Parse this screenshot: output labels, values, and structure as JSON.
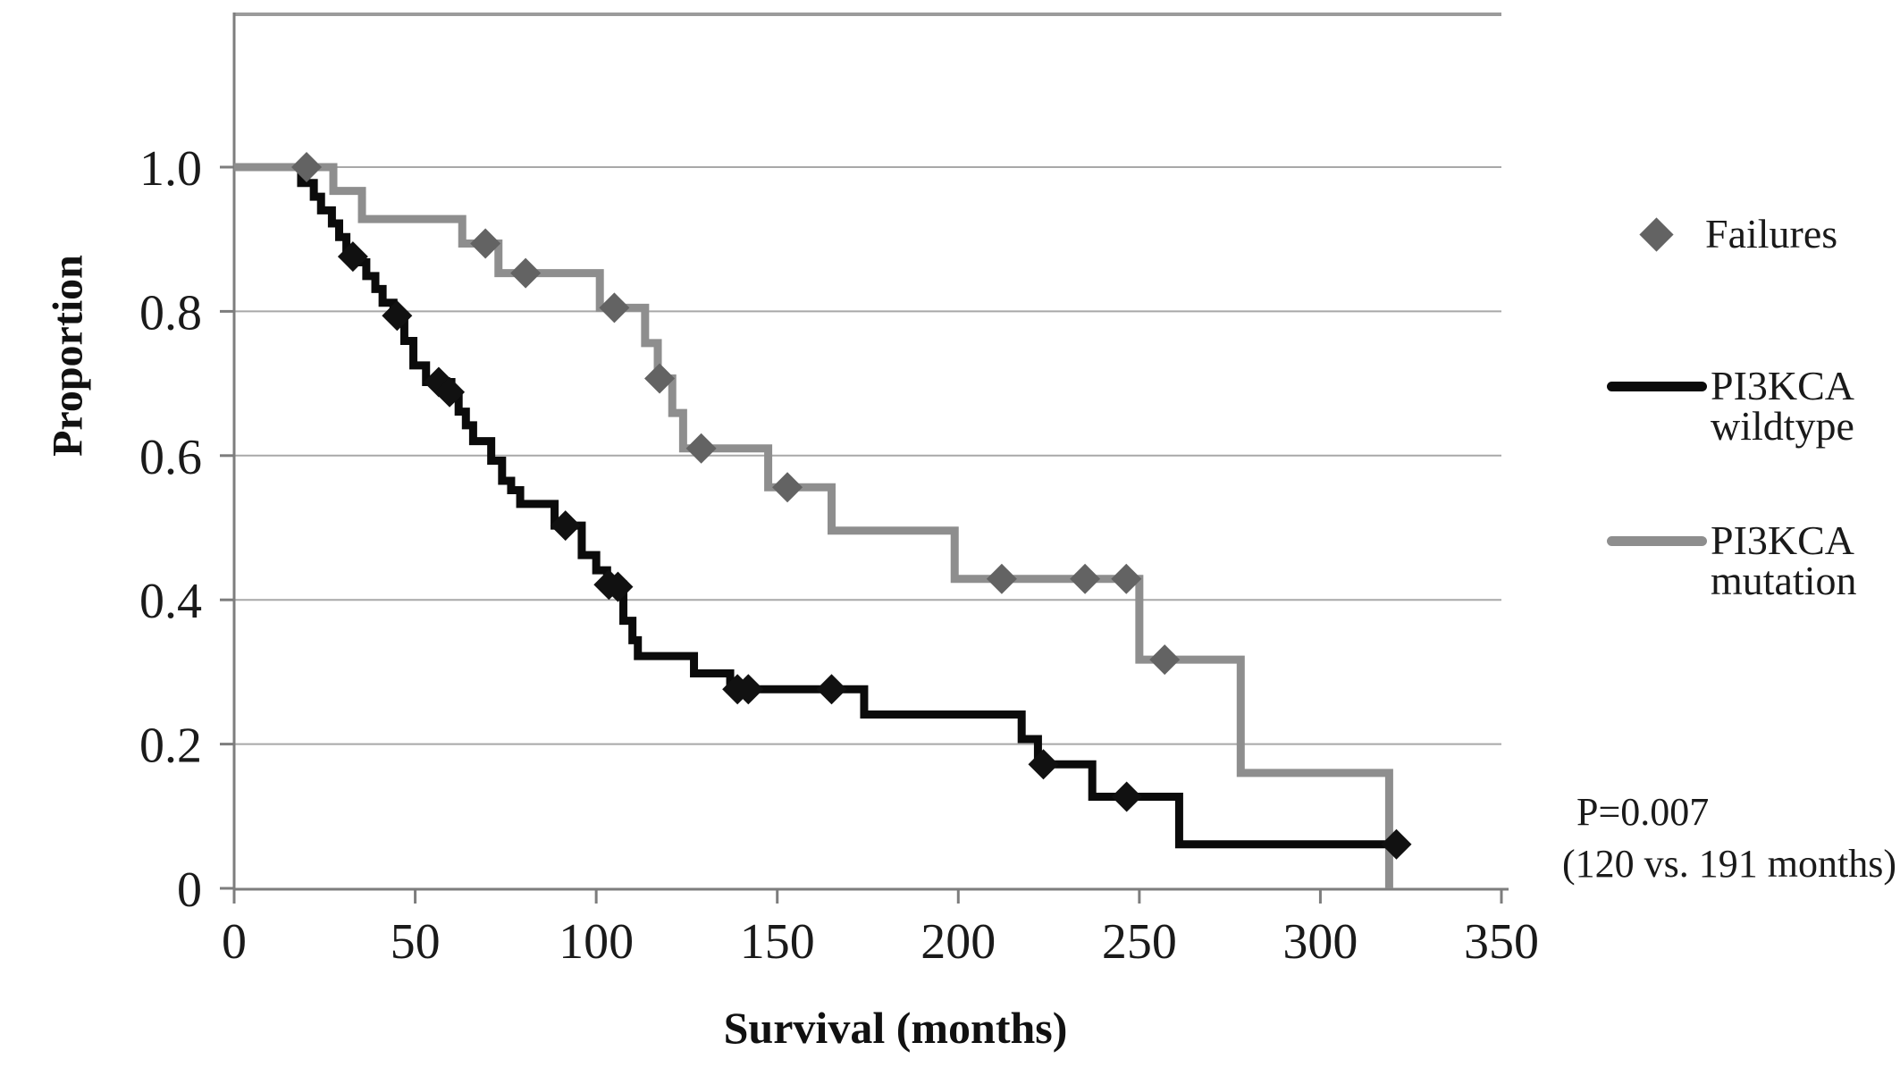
{
  "chart_data": {
    "type": "line",
    "subtype": "kaplan-meier-step",
    "title": "",
    "xlabel": "Survival (months)",
    "ylabel": "Proportion",
    "xlim": [
      0,
      350
    ],
    "ylim": [
      0,
      1.2
    ],
    "xticks": [
      0,
      50,
      100,
      150,
      200,
      250,
      300,
      350
    ],
    "ytick_values": [
      0,
      0.2,
      0.4,
      0.6,
      0.8,
      1.0
    ],
    "ytick_labels": [
      "0",
      "0.2",
      "0.4",
      "0.6",
      "0.8",
      "1.0"
    ],
    "grid": "horizontal",
    "legend_position": "right",
    "colors": {
      "background": "#ffffff",
      "axis": "#7d7d7d",
      "gridline": "#a8a8a8",
      "plot_top_border": "#9b9b9b",
      "tick_label": "#1a1a1a"
    },
    "series": [
      {
        "name": "PI3KCA wildtype",
        "color": "#0b0b0b",
        "marker_color": "#111111",
        "start": [
          0,
          1.0
        ],
        "steps": [
          [
            18.5,
            0.978
          ],
          [
            22,
            0.959
          ],
          [
            24,
            0.94
          ],
          [
            27,
            0.922
          ],
          [
            29,
            0.903
          ],
          [
            31,
            0.884
          ],
          [
            33,
            0.868
          ],
          [
            36.5,
            0.849
          ],
          [
            39,
            0.831
          ],
          [
            41,
            0.812
          ],
          [
            44,
            0.794
          ],
          [
            47,
            0.759
          ],
          [
            49.5,
            0.725
          ],
          [
            53,
            0.702
          ],
          [
            60,
            0.68
          ],
          [
            62,
            0.661
          ],
          [
            64,
            0.642
          ],
          [
            66,
            0.62
          ],
          [
            71,
            0.593
          ],
          [
            74,
            0.565
          ],
          [
            76.5,
            0.552
          ],
          [
            79,
            0.533
          ],
          [
            88.5,
            0.503
          ],
          [
            96,
            0.462
          ],
          [
            100,
            0.441
          ],
          [
            103,
            0.421
          ],
          [
            107.5,
            0.371
          ],
          [
            110,
            0.344
          ],
          [
            111.5,
            0.322
          ],
          [
            127,
            0.298
          ],
          [
            137,
            0.276
          ],
          [
            174,
            0.241
          ],
          [
            217.5,
            0.207
          ],
          [
            222,
            0.172
          ],
          [
            237,
            0.127
          ],
          [
            261,
            0.061
          ]
        ],
        "end_x": 322,
        "failures": [
          [
            32.8,
            0.876
          ],
          [
            45,
            0.794
          ],
          [
            56.5,
            0.702
          ],
          [
            59.5,
            0.688
          ],
          [
            91.5,
            0.503
          ],
          [
            103.5,
            0.421
          ],
          [
            106,
            0.418
          ],
          [
            139,
            0.276
          ],
          [
            142,
            0.276
          ],
          [
            165,
            0.276
          ],
          [
            223.5,
            0.172
          ],
          [
            246.5,
            0.127
          ],
          [
            321,
            0.061
          ]
        ]
      },
      {
        "name": "PI3KCA mutation",
        "color": "#8e8e8e",
        "marker_color": "#636363",
        "start": [
          0,
          1.0
        ],
        "steps": [
          [
            27.4,
            0.967
          ],
          [
            35.3,
            0.928
          ],
          [
            63,
            0.894
          ],
          [
            73,
            0.853
          ],
          [
            101,
            0.805
          ],
          [
            113.5,
            0.756
          ],
          [
            117,
            0.707
          ],
          [
            121,
            0.659
          ],
          [
            124,
            0.61
          ],
          [
            147.5,
            0.556
          ],
          [
            165,
            0.496
          ],
          [
            199,
            0.429
          ],
          [
            250,
            0.317
          ],
          [
            278,
            0.16
          ],
          [
            319,
            0.0
          ]
        ],
        "end_x": 319,
        "failures": [
          [
            20,
            1.0
          ],
          [
            69.4,
            0.894
          ],
          [
            80.5,
            0.853
          ],
          [
            105,
            0.805
          ],
          [
            117.5,
            0.707
          ],
          [
            129,
            0.61
          ],
          [
            152.8,
            0.556
          ],
          [
            212,
            0.429
          ],
          [
            235,
            0.429
          ],
          [
            246.4,
            0.429
          ],
          [
            257,
            0.317
          ]
        ]
      }
    ],
    "annotation": {
      "line1": "P=0.007",
      "line2": "(120 vs. 191 months)"
    }
  },
  "legend": {
    "failures_label": "Failures",
    "wildtype_label": "PI3KCA wildtype",
    "mutation_label": "PI3KCA mutation"
  }
}
